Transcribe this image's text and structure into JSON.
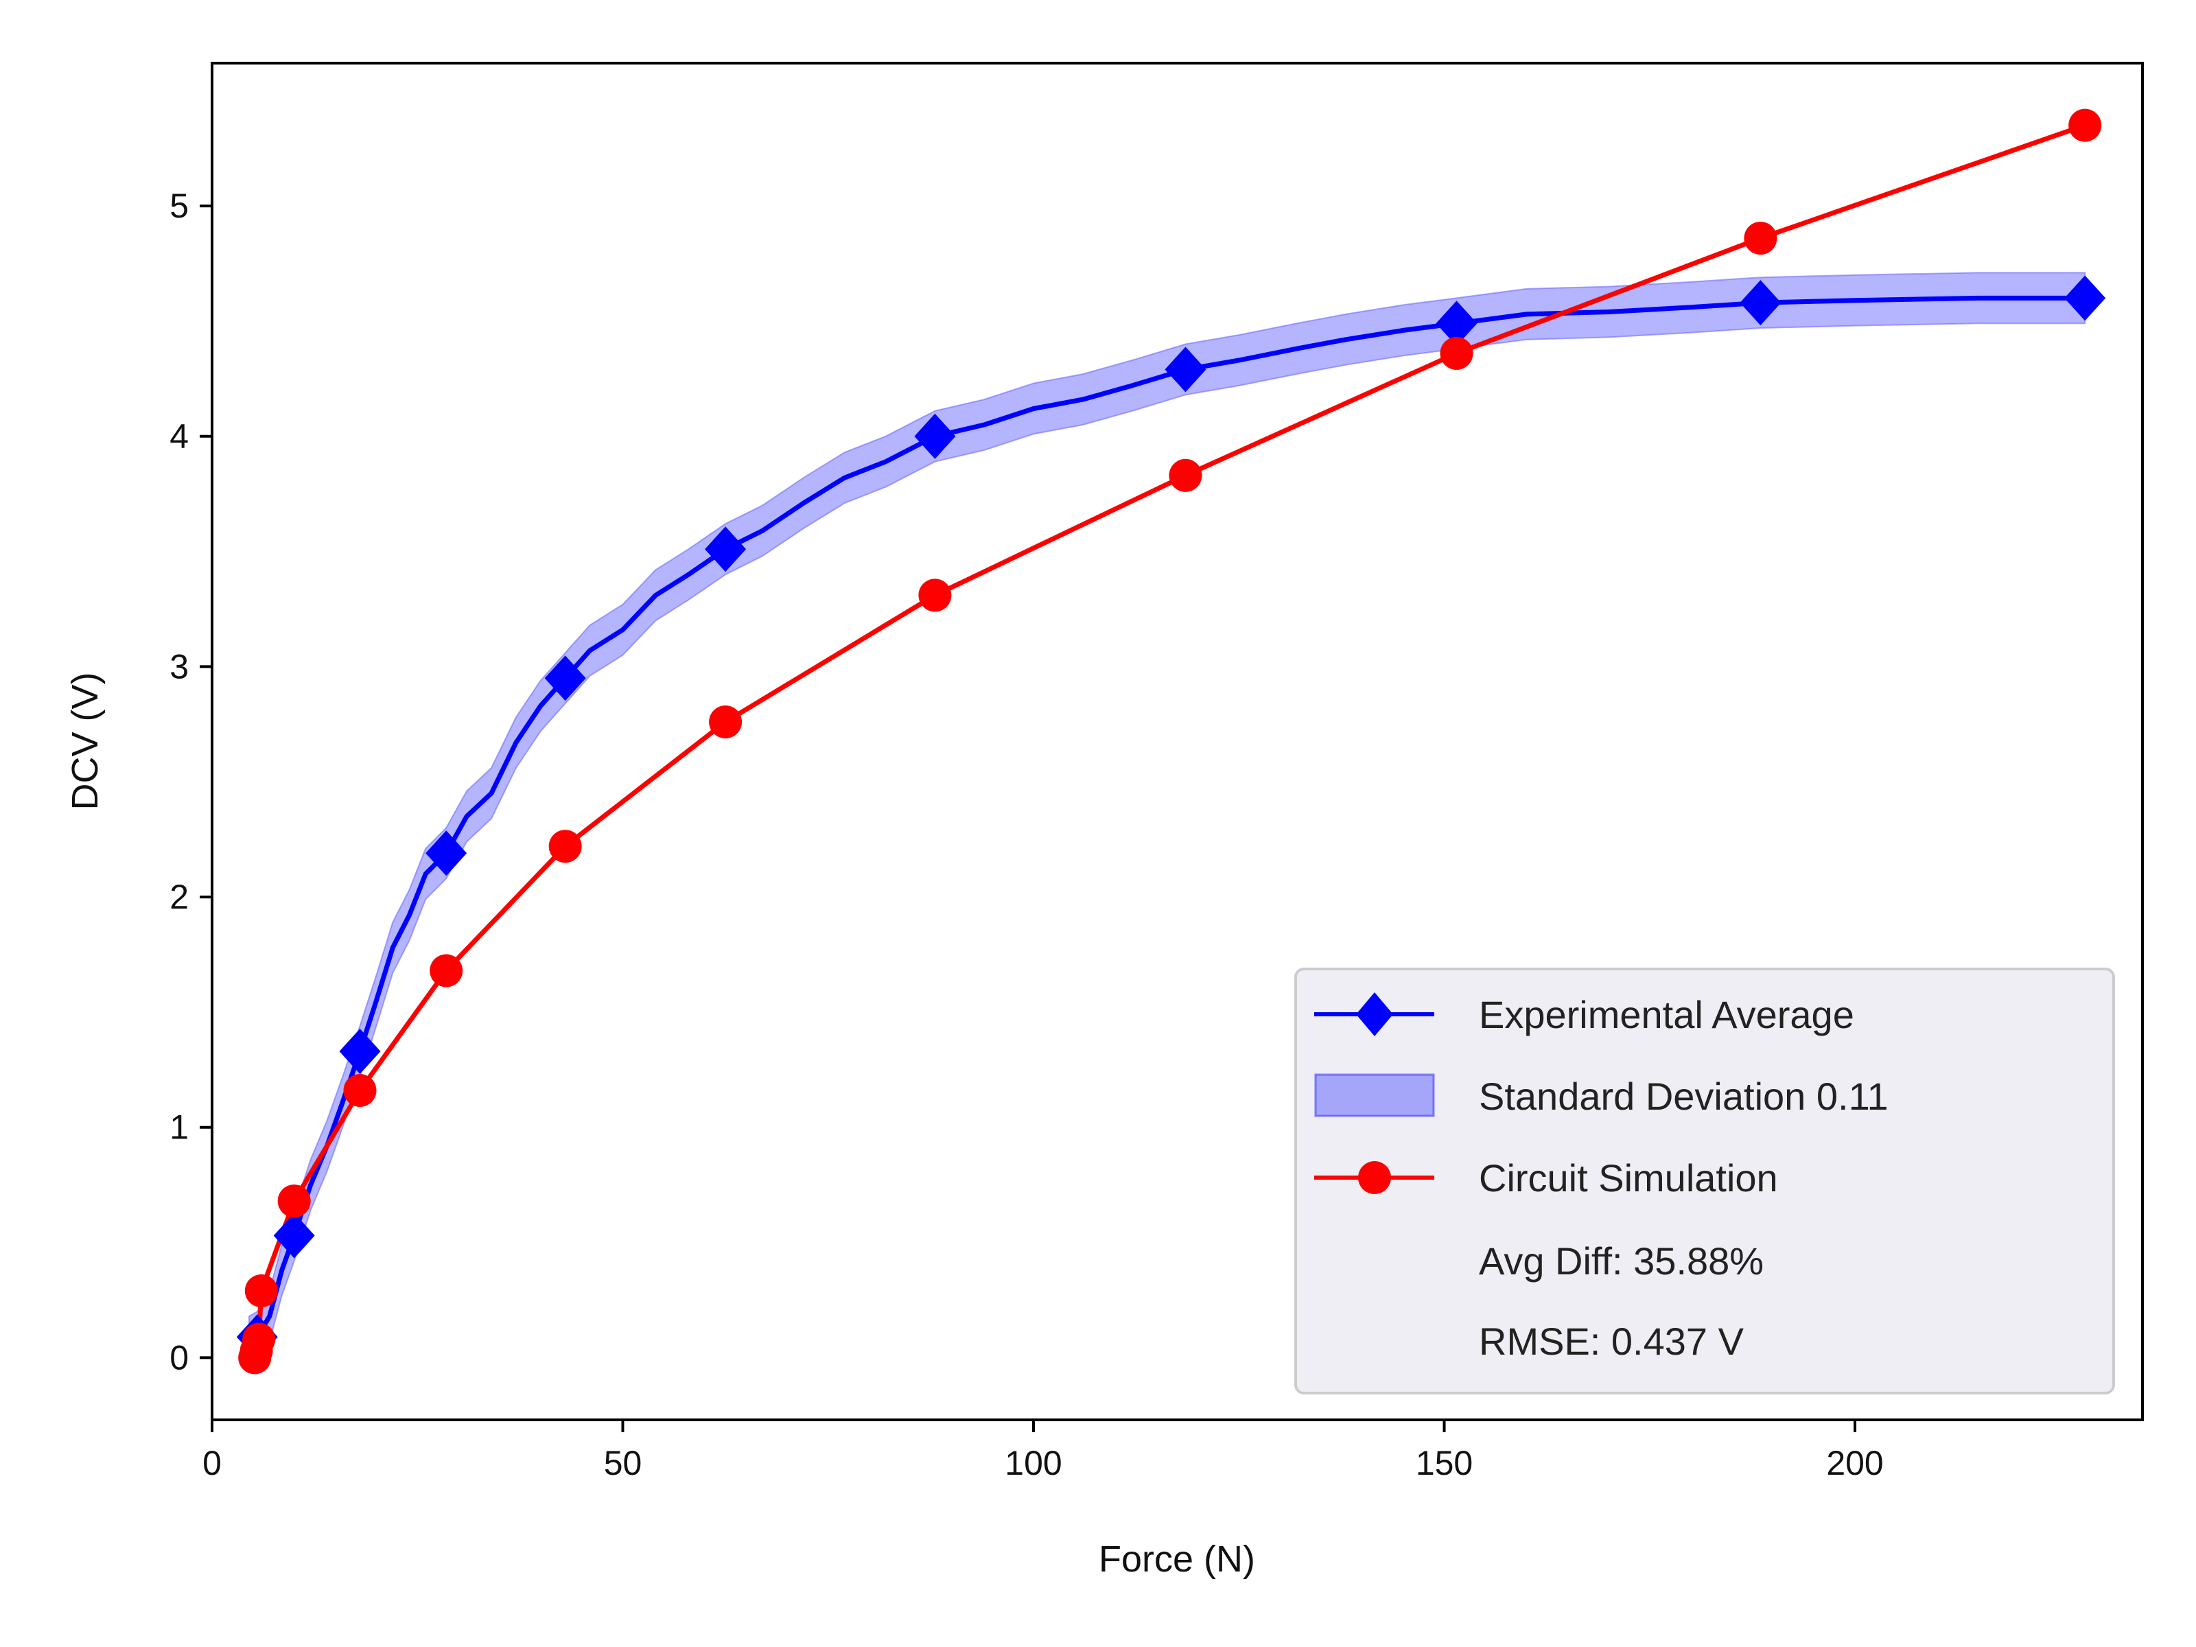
{
  "chart_data": {
    "type": "line",
    "title": "",
    "xlabel": "Force (N)",
    "ylabel": "DCV (V)",
    "xlim": [
      0,
      235
    ],
    "ylim": [
      -0.27,
      5.62
    ],
    "x_ticks": [
      0,
      50,
      100,
      150,
      200
    ],
    "y_ticks": [
      0,
      1,
      2,
      3,
      4,
      5
    ],
    "x_tick_labels": [
      "0",
      "50",
      "100",
      "150",
      "200"
    ],
    "y_tick_labels": [
      "0",
      "1",
      "2",
      "3",
      "4",
      "5"
    ],
    "grid": false,
    "legend_position": "lower-right",
    "series": [
      {
        "name": "Experimental Average",
        "color": "#0000ff",
        "marker": "diamond",
        "x": [
          4.5,
          5.5,
          7.0,
          8.5,
          10.0,
          12.0,
          14.0,
          16.0,
          18.0,
          20.0,
          22.0,
          24.0,
          26.0,
          28.5,
          31.0,
          34.0,
          37.0,
          40.0,
          43.0,
          46.0,
          50.0,
          54.0,
          58.0,
          62.5,
          67.0,
          72.0,
          77.0,
          82.0,
          88.0,
          94.0,
          100.0,
          106.0,
          112.0,
          118.5,
          125.0,
          132.0,
          138.0,
          145.0,
          151.5,
          160.0,
          170.0,
          180.0,
          188.5,
          200.0,
          215.0,
          228.0
        ],
        "y": [
          0.07,
          0.09,
          0.18,
          0.38,
          0.53,
          0.75,
          0.92,
          1.12,
          1.33,
          1.55,
          1.78,
          1.92,
          2.1,
          2.19,
          2.35,
          2.45,
          2.67,
          2.83,
          2.95,
          3.07,
          3.16,
          3.31,
          3.4,
          3.51,
          3.59,
          3.71,
          3.82,
          3.89,
          4.0,
          4.05,
          4.12,
          4.16,
          4.22,
          4.29,
          4.33,
          4.38,
          4.42,
          4.46,
          4.49,
          4.53,
          4.54,
          4.56,
          4.58,
          4.59,
          4.6,
          4.6
        ],
        "marker_x": [
          5.5,
          10.0,
          18.0,
          28.5,
          43.0,
          62.5,
          88.0,
          118.5,
          151.5,
          188.5,
          228.0
        ],
        "marker_y": [
          0.09,
          0.53,
          1.33,
          2.19,
          2.95,
          3.51,
          4.0,
          4.29,
          4.49,
          4.58,
          4.6
        ]
      },
      {
        "name": "Circuit Simulation",
        "color": "#ff0000",
        "marker": "circle",
        "x": [
          5.2,
          5.4,
          5.7,
          6.0,
          10.0,
          18.0,
          28.5,
          43.0,
          62.5,
          88.0,
          118.5,
          151.5,
          188.5,
          228.0
        ],
        "y": [
          0.0,
          0.03,
          0.08,
          0.29,
          0.68,
          1.16,
          1.68,
          2.22,
          2.76,
          3.31,
          3.83,
          4.36,
          4.86,
          5.35
        ]
      }
    ],
    "band": {
      "name": "Standard Deviation 0.11",
      "color": "#6a6aff",
      "half_width": 0.11
    },
    "legend_entries": [
      {
        "label": "Experimental Average"
      },
      {
        "label": "Standard Deviation 0.11"
      },
      {
        "label": "Circuit Simulation"
      },
      {
        "label": "Avg Diff: 35.88%"
      },
      {
        "label": "RMSE: 0.437 V"
      }
    ]
  }
}
